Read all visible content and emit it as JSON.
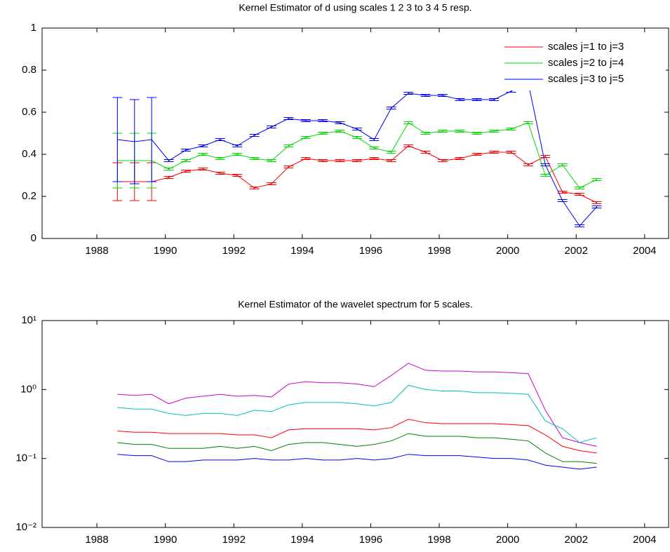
{
  "chart_data": [
    {
      "type": "line",
      "title": "Kernel Estimator of d using scales 1  2  3 to 3  4  5 resp.",
      "x": [
        1988.6,
        1989.1,
        1989.6,
        1990.1,
        1990.6,
        1991.1,
        1991.6,
        1992.1,
        1992.6,
        1993.1,
        1993.6,
        1994.1,
        1994.6,
        1995.1,
        1995.6,
        1996.1,
        1996.6,
        1997.1,
        1997.6,
        1998.1,
        1998.6,
        1999.1,
        1999.6,
        2000.1,
        2000.6,
        2001.1,
        2001.6,
        2002.1,
        2002.6
      ],
      "series": [
        {
          "name": "scales j=1 to j=3",
          "color": "#ff0000",
          "values": [
            0.27,
            0.27,
            0.27,
            0.29,
            0.32,
            0.33,
            0.31,
            0.3,
            0.24,
            0.26,
            0.34,
            0.38,
            0.37,
            0.37,
            0.37,
            0.38,
            0.37,
            0.44,
            0.41,
            0.37,
            0.38,
            0.4,
            0.41,
            0.41,
            0.35,
            0.39,
            0.22,
            0.21,
            0.17
          ],
          "errors": [
            0.09,
            0.09,
            0.09,
            0.005,
            0.005,
            0.005,
            0.005,
            0.005,
            0.005,
            0.005,
            0.005,
            0.005,
            0.005,
            0.005,
            0.005,
            0.005,
            0.005,
            0.005,
            0.005,
            0.005,
            0.005,
            0.005,
            0.005,
            0.005,
            0.005,
            0.005,
            0.005,
            0.005,
            0.005
          ]
        },
        {
          "name": "scales j=2 to j=4",
          "color": "#00dd00",
          "values": [
            0.37,
            0.37,
            0.37,
            0.33,
            0.37,
            0.4,
            0.38,
            0.4,
            0.38,
            0.37,
            0.44,
            0.48,
            0.5,
            0.51,
            0.48,
            0.43,
            0.41,
            0.55,
            0.5,
            0.51,
            0.51,
            0.5,
            0.51,
            0.52,
            0.55,
            0.3,
            0.35,
            0.24,
            0.28
          ],
          "errors": [
            0.13,
            0.13,
            0.13,
            0.005,
            0.005,
            0.005,
            0.005,
            0.005,
            0.005,
            0.005,
            0.005,
            0.005,
            0.005,
            0.005,
            0.005,
            0.005,
            0.005,
            0.005,
            0.005,
            0.005,
            0.005,
            0.005,
            0.005,
            0.005,
            0.005,
            0.005,
            0.005,
            0.005,
            0.005
          ]
        },
        {
          "name": "scales j=3 to j=5",
          "color": "#0000ff",
          "values": [
            0.47,
            0.46,
            0.47,
            0.37,
            0.42,
            0.44,
            0.47,
            0.44,
            0.49,
            0.53,
            0.57,
            0.56,
            0.56,
            0.55,
            0.52,
            0.47,
            0.62,
            0.69,
            0.68,
            0.68,
            0.66,
            0.66,
            0.66,
            0.7,
            0.74,
            0.35,
            0.18,
            0.06,
            0.15
          ],
          "errors": [
            0.2,
            0.2,
            0.2,
            0.005,
            0.005,
            0.005,
            0.005,
            0.005,
            0.005,
            0.005,
            0.005,
            0.005,
            0.005,
            0.005,
            0.005,
            0.005,
            0.005,
            0.005,
            0.005,
            0.005,
            0.005,
            0.005,
            0.005,
            0.005,
            0.005,
            0.005,
            0.005,
            0.005,
            0.005
          ]
        }
      ],
      "xlim": [
        1986.4,
        2004.7
      ],
      "xticks": [
        1988,
        1990,
        1992,
        1994,
        1996,
        1998,
        2000,
        2002,
        2004
      ],
      "ylim": [
        0,
        1
      ],
      "yticks": [
        0,
        0.2,
        0.4,
        0.6,
        0.8,
        1
      ],
      "legend": "upper right",
      "log_y": false
    },
    {
      "type": "line",
      "title": "Kernel Estimator of the wavelet spectrum for 5 scales.",
      "x": [
        1988.6,
        1989.1,
        1989.6,
        1990.1,
        1990.6,
        1991.1,
        1991.6,
        1992.1,
        1992.6,
        1993.1,
        1993.6,
        1994.1,
        1994.6,
        1995.1,
        1995.6,
        1996.1,
        1996.6,
        1997.1,
        1997.6,
        1998.1,
        1998.6,
        1999.1,
        1999.6,
        2000.1,
        2000.6,
        2001.1,
        2001.6,
        2002.1,
        2002.6
      ],
      "series": [
        {
          "color": "#cc00cc",
          "values": [
            0.85,
            0.82,
            0.85,
            0.62,
            0.75,
            0.8,
            0.85,
            0.8,
            0.82,
            0.78,
            1.2,
            1.3,
            1.25,
            1.25,
            1.2,
            1.1,
            1.6,
            2.4,
            1.9,
            1.85,
            1.85,
            1.8,
            1.8,
            1.75,
            1.7,
            0.5,
            0.2,
            0.17,
            0.15
          ]
        },
        {
          "color": "#00bfbf",
          "values": [
            0.55,
            0.52,
            0.52,
            0.45,
            0.42,
            0.45,
            0.45,
            0.42,
            0.5,
            0.48,
            0.6,
            0.65,
            0.65,
            0.65,
            0.62,
            0.58,
            0.65,
            1.15,
            1.0,
            0.95,
            0.95,
            0.9,
            0.9,
            0.88,
            0.85,
            0.35,
            0.27,
            0.17,
            0.2
          ]
        },
        {
          "color": "#ff0000",
          "values": [
            0.25,
            0.24,
            0.24,
            0.23,
            0.23,
            0.23,
            0.23,
            0.22,
            0.22,
            0.2,
            0.26,
            0.27,
            0.27,
            0.27,
            0.27,
            0.26,
            0.28,
            0.37,
            0.33,
            0.32,
            0.32,
            0.32,
            0.32,
            0.31,
            0.3,
            0.22,
            0.15,
            0.13,
            0.12
          ]
        },
        {
          "color": "#008000",
          "values": [
            0.17,
            0.16,
            0.16,
            0.14,
            0.14,
            0.14,
            0.15,
            0.14,
            0.15,
            0.13,
            0.16,
            0.17,
            0.17,
            0.16,
            0.15,
            0.16,
            0.18,
            0.23,
            0.21,
            0.21,
            0.21,
            0.2,
            0.2,
            0.19,
            0.18,
            0.12,
            0.09,
            0.09,
            0.085
          ]
        },
        {
          "color": "#0000ff",
          "values": [
            0.115,
            0.11,
            0.11,
            0.09,
            0.09,
            0.095,
            0.095,
            0.095,
            0.1,
            0.095,
            0.095,
            0.1,
            0.095,
            0.095,
            0.1,
            0.095,
            0.1,
            0.115,
            0.11,
            0.11,
            0.11,
            0.105,
            0.1,
            0.1,
            0.095,
            0.08,
            0.075,
            0.07,
            0.075
          ]
        }
      ],
      "xlim": [
        1986.4,
        2004.7
      ],
      "xticks": [
        1988,
        1990,
        1992,
        1994,
        1996,
        1998,
        2000,
        2002,
        2004
      ],
      "ylim": [
        0.01,
        10
      ],
      "yticks": [
        {
          "value": 0.01,
          "label": "10⁻²"
        },
        {
          "value": 0.1,
          "label": "10⁻¹"
        },
        {
          "value": 1,
          "label": "10⁰"
        },
        {
          "value": 10,
          "label": "10¹"
        }
      ],
      "log_y": true
    }
  ]
}
